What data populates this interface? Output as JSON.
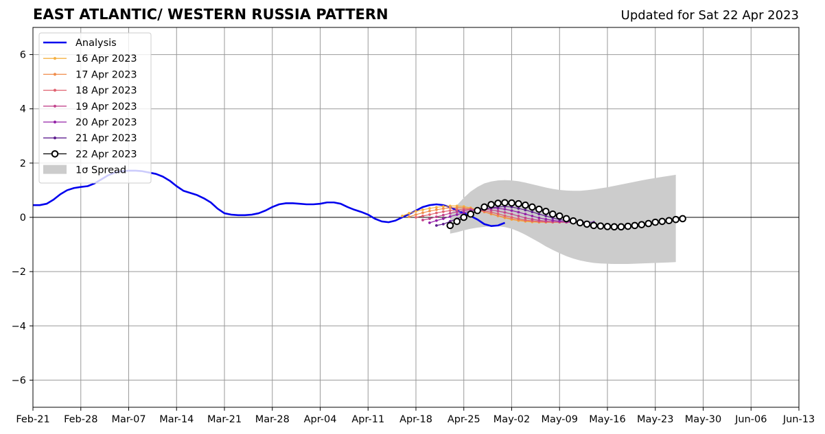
{
  "chart_data": {
    "type": "line",
    "title": "EAST ATLANTIC/ WESTERN RUSSIA PATTERN",
    "subtitle": "Updated for Sat 22 Apr 2023",
    "xlabel": "",
    "ylabel": "",
    "ylim": [
      -7,
      7
    ],
    "xlim": [
      "2023-02-21",
      "2023-06-13"
    ],
    "x_ticks": [
      "Feb-21",
      "Feb-28",
      "Mar-07",
      "Mar-14",
      "Mar-21",
      "Mar-28",
      "Apr-04",
      "Apr-11",
      "Apr-18",
      "Apr-25",
      "May-02",
      "May-09",
      "May-16",
      "May-23",
      "May-30",
      "Jun-06",
      "Jun-13"
    ],
    "y_ticks": [
      -6,
      -4,
      -2,
      0,
      2,
      4,
      6
    ],
    "y_tick_labels": [
      "−6",
      "−4",
      "−2",
      "0",
      "2",
      "4",
      "6"
    ],
    "grid": true,
    "legend_position": "top-left",
    "colors": {
      "analysis": "#0000ee",
      "f16": "#f5b041",
      "f17": "#f08c4a",
      "f18": "#e0606f",
      "f19": "#c2448c",
      "f20": "#9422a8",
      "f21": "#5e1e8f",
      "f22": "#000000",
      "spread": "#cccccc",
      "grid": "#999999"
    },
    "analysis": {
      "name": "Analysis",
      "start_date": "2023-02-21",
      "values": [
        0.45,
        0.45,
        0.5,
        0.65,
        0.85,
        1.0,
        1.08,
        1.12,
        1.15,
        1.25,
        1.4,
        1.55,
        1.65,
        1.7,
        1.72,
        1.72,
        1.7,
        1.65,
        1.6,
        1.5,
        1.35,
        1.15,
        0.98,
        0.9,
        0.82,
        0.7,
        0.55,
        0.32,
        0.15,
        0.1,
        0.08,
        0.08,
        0.1,
        0.15,
        0.25,
        0.38,
        0.48,
        0.52,
        0.52,
        0.5,
        0.48,
        0.48,
        0.5,
        0.55,
        0.55,
        0.5,
        0.38,
        0.28,
        0.2,
        0.1,
        -0.05,
        -0.15,
        -0.18,
        -0.12,
        0.0,
        0.12,
        0.25,
        0.38,
        0.45,
        0.48,
        0.45,
        0.38,
        0.25,
        0.15,
        0.05,
        -0.08,
        -0.25,
        -0.32,
        -0.3,
        -0.2
      ]
    },
    "forecasts": [
      {
        "name": "16 Apr 2023",
        "start_date": "2023-04-16",
        "values": [
          0.05,
          0.15,
          0.22,
          0.28,
          0.33,
          0.37,
          0.4,
          0.42,
          0.42,
          0.4,
          0.35,
          0.28,
          0.2,
          0.12,
          0.05,
          -0.02,
          -0.08,
          -0.12,
          -0.15,
          -0.17,
          -0.18,
          -0.18,
          -0.18,
          -0.18
        ]
      },
      {
        "name": "17 Apr 2023",
        "start_date": "2023-04-17",
        "values": [
          0.02,
          0.1,
          0.17,
          0.23,
          0.28,
          0.32,
          0.35,
          0.36,
          0.35,
          0.32,
          0.27,
          0.2,
          0.13,
          0.06,
          0.0,
          -0.06,
          -0.1,
          -0.13,
          -0.15,
          -0.17,
          -0.18,
          -0.18,
          -0.18,
          -0.18
        ]
      },
      {
        "name": "18 Apr 2023",
        "start_date": "2023-04-18",
        "values": [
          0.0,
          0.05,
          0.1,
          0.16,
          0.21,
          0.25,
          0.28,
          0.3,
          0.3,
          0.28,
          0.24,
          0.19,
          0.13,
          0.06,
          0.0,
          -0.05,
          -0.1,
          -0.13,
          -0.15,
          -0.16,
          -0.17,
          -0.17,
          -0.18,
          -0.18
        ]
      },
      {
        "name": "19 Apr 2023",
        "start_date": "2023-04-19",
        "values": [
          -0.1,
          -0.05,
          0.02,
          0.08,
          0.15,
          0.2,
          0.25,
          0.28,
          0.3,
          0.3,
          0.27,
          0.23,
          0.18,
          0.12,
          0.05,
          -0.02,
          -0.07,
          -0.11,
          -0.14,
          -0.16,
          -0.17,
          -0.18,
          -0.18,
          -0.18
        ]
      },
      {
        "name": "20 Apr 2023",
        "start_date": "2023-04-20",
        "values": [
          -0.2,
          -0.12,
          -0.05,
          0.03,
          0.1,
          0.17,
          0.23,
          0.28,
          0.32,
          0.34,
          0.33,
          0.3,
          0.25,
          0.19,
          0.12,
          0.05,
          -0.02,
          -0.07,
          -0.11,
          -0.14,
          -0.16,
          -0.18,
          -0.18,
          -0.18
        ]
      },
      {
        "name": "21 Apr 2023",
        "start_date": "2023-04-21",
        "values": [
          -0.3,
          -0.25,
          -0.15,
          -0.05,
          0.05,
          0.14,
          0.22,
          0.29,
          0.35,
          0.38,
          0.4,
          0.38,
          0.33,
          0.27,
          0.2,
          0.12,
          0.05,
          -0.02,
          -0.08,
          -0.12,
          -0.15,
          -0.17,
          -0.18,
          -0.18
        ]
      },
      {
        "name": "22 Apr 2023",
        "start_date": "2023-04-23",
        "marker": "open-circle",
        "values": [
          -0.3,
          -0.15,
          0.0,
          0.12,
          0.25,
          0.38,
          0.47,
          0.52,
          0.54,
          0.53,
          0.5,
          0.45,
          0.38,
          0.3,
          0.22,
          0.12,
          0.05,
          -0.05,
          -0.13,
          -0.2,
          -0.25,
          -0.3,
          -0.32,
          -0.34,
          -0.35,
          -0.35,
          -0.33,
          -0.3,
          -0.27,
          -0.23,
          -0.18,
          -0.15,
          -0.12,
          -0.08,
          -0.05
        ]
      }
    ],
    "spread": {
      "name": "1σ Spread",
      "start_date": "2023-04-23",
      "upper": [
        0.1,
        0.45,
        0.72,
        0.95,
        1.12,
        1.25,
        1.32,
        1.36,
        1.37,
        1.36,
        1.33,
        1.28,
        1.22,
        1.16,
        1.1,
        1.05,
        1.01,
        0.99,
        0.98,
        0.98,
        1.0,
        1.03,
        1.07,
        1.11,
        1.16,
        1.21,
        1.26,
        1.31,
        1.36,
        1.41,
        1.45,
        1.49,
        1.53,
        1.57
      ],
      "lower": [
        -0.6,
        -0.55,
        -0.48,
        -0.42,
        -0.38,
        -0.35,
        -0.33,
        -0.33,
        -0.36,
        -0.42,
        -0.52,
        -0.64,
        -0.78,
        -0.92,
        -1.07,
        -1.2,
        -1.32,
        -1.43,
        -1.52,
        -1.59,
        -1.64,
        -1.68,
        -1.7,
        -1.71,
        -1.72,
        -1.72,
        -1.72,
        -1.71,
        -1.7,
        -1.69,
        -1.68,
        -1.67,
        -1.66,
        -1.65
      ]
    }
  }
}
